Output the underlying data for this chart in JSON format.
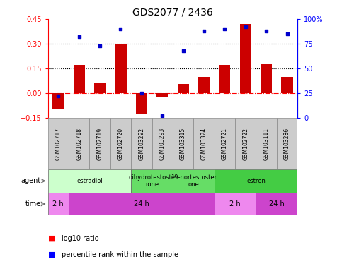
{
  "title": "GDS2077 / 2436",
  "samples": [
    "GSM102717",
    "GSM102718",
    "GSM102719",
    "GSM102720",
    "GSM103292",
    "GSM103293",
    "GSM103315",
    "GSM103324",
    "GSM102721",
    "GSM102722",
    "GSM103111",
    "GSM103286"
  ],
  "log10_ratio": [
    -0.1,
    0.17,
    0.06,
    0.3,
    -0.13,
    -0.02,
    0.055,
    0.1,
    0.17,
    0.42,
    0.18,
    0.1
  ],
  "percentile": [
    0.22,
    0.82,
    0.73,
    0.9,
    0.25,
    0.02,
    0.68,
    0.88,
    0.9,
    0.92,
    0.88,
    0.85
  ],
  "bar_color": "#cc0000",
  "dot_color": "#0000cc",
  "ylim_left": [
    -0.15,
    0.45
  ],
  "ylim_right": [
    0,
    100
  ],
  "yticks_left": [
    -0.15,
    0,
    0.15,
    0.3,
    0.45
  ],
  "yticks_right": [
    0,
    25,
    50,
    75,
    100
  ],
  "hlines": [
    0.15,
    0.3
  ],
  "agent_groups": [
    {
      "label": "estradiol",
      "start": 0,
      "end": 4,
      "color": "#ccffcc"
    },
    {
      "label": "dihydrotestoste\nrone",
      "start": 4,
      "end": 6,
      "color": "#66dd66"
    },
    {
      "label": "19-nortestoster\none",
      "start": 6,
      "end": 8,
      "color": "#66dd66"
    },
    {
      "label": "estren",
      "start": 8,
      "end": 12,
      "color": "#44cc44"
    }
  ],
  "time_groups": [
    {
      "label": "2 h",
      "start": 0,
      "end": 1,
      "color": "#ee88ee"
    },
    {
      "label": "24 h",
      "start": 1,
      "end": 8,
      "color": "#cc44cc"
    },
    {
      "label": "2 h",
      "start": 8,
      "end": 10,
      "color": "#ee88ee"
    },
    {
      "label": "24 h",
      "start": 10,
      "end": 12,
      "color": "#cc44cc"
    }
  ],
  "legend_red": "log10 ratio",
  "legend_blue": "percentile rank within the sample",
  "title_fontsize": 10,
  "tick_fontsize": 7,
  "bar_width": 0.55
}
